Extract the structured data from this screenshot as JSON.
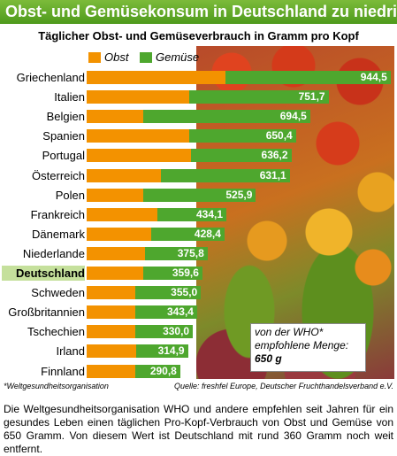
{
  "header": {
    "title": "Obst- und Gemüsekonsum in Deutschland zu niedrig",
    "subtitle": "Täglicher Obst- und Gemüseverbrauch in Gramm pro Kopf"
  },
  "legend": {
    "obst_label": "Obst",
    "gemuese_label": "Gemüse"
  },
  "who_box": {
    "text": "von der WHO* empfohlene Menge:",
    "value": "650 g"
  },
  "footer": {
    "footnote": "*Weltgesundheitsorganisation",
    "source": "Quelle: freshfel Europe, Deutscher Fruchthandelsverband e.V."
  },
  "caption": "Die Weltgesundheitsorganisation WHO und andere empfehlen seit Jahren für ein gesundes Leben einen täglichen Pro-Kopf-Verbrauch von Obst und Gemüse von 650 Gramm. Von diesem Wert ist Deutschland mit rund 360 Gramm noch weit entfernt.",
  "colors": {
    "obst": "#f39200",
    "gemuese": "#4ea72e",
    "title_bar": "#5ba624",
    "highlight": "#c5e09c"
  },
  "chart_data": {
    "type": "bar",
    "orientation": "horizontal",
    "stacked": true,
    "title": "Täglicher Obst- und Gemüseverbrauch in Gramm pro Kopf",
    "categories": [
      "Griechenland",
      "Italien",
      "Belgien",
      "Spanien",
      "Portugal",
      "Österreich",
      "Polen",
      "Frankreich",
      "Dänemark",
      "Niederlande",
      "Deutschland",
      "Schweden",
      "Großbritannien",
      "Tschechien",
      "Irland",
      "Finnland"
    ],
    "series": [
      {
        "name": "Obst",
        "color": "#f39200",
        "values": [
          430,
          320,
          175,
          320,
          325,
          230,
          175,
          220,
          200,
          180,
          175,
          150,
          150,
          150,
          155,
          150
        ]
      },
      {
        "name": "Gemüse",
        "color": "#4ea72e",
        "values": [
          514.5,
          431.7,
          519.5,
          330.4,
          311.2,
          401.1,
          350.9,
          214.1,
          228.4,
          195.8,
          184.6,
          205.0,
          193.4,
          180.0,
          159.9,
          140.8
        ]
      }
    ],
    "totals": [
      "944,5",
      "751,7",
      "694,5",
      "650,4",
      "636,2",
      "631,1",
      "525,9",
      "434,1",
      "428,4",
      "375,8",
      "359,6",
      "355,0",
      "343,4",
      "330,0",
      "314,9",
      "290,8"
    ],
    "highlight": "Deutschland",
    "reference_value": 650
  }
}
